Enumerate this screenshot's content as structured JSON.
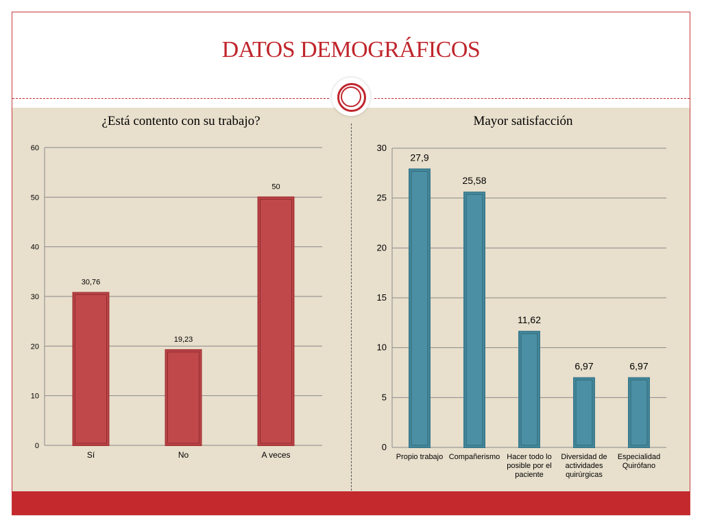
{
  "slide": {
    "title": "DATOS DEMOGRÁFICOS"
  },
  "colors": {
    "accent": "#c0252c",
    "background": "#e8dfcc",
    "footer": "#c3292d"
  },
  "chart_data": [
    {
      "type": "bar",
      "title": "¿Está contento con su trabajo?",
      "categories": [
        "Sí",
        "No",
        "A veces"
      ],
      "values": [
        30.76,
        19.23,
        50
      ],
      "value_labels": [
        "30,76",
        "19,23",
        "50"
      ],
      "ylim": [
        0,
        60
      ],
      "yticks": [
        0,
        10,
        20,
        30,
        40,
        50,
        60
      ],
      "grid": true,
      "color": "#c0484b",
      "xlabel": "",
      "ylabel": ""
    },
    {
      "type": "bar",
      "title": "Mayor satisfacción",
      "categories": [
        [
          "Propio trabajo"
        ],
        [
          "Compañerismo"
        ],
        [
          "Hacer todo lo",
          "posible por el",
          "paciente"
        ],
        [
          "Diversidad de",
          "actividades",
          "quirúrgicas"
        ],
        [
          "Especialidad",
          "Quirófano"
        ]
      ],
      "values": [
        27.9,
        25.58,
        11.62,
        6.97,
        6.97
      ],
      "value_labels": [
        "27,9",
        "25,58",
        "11,62",
        "6,97",
        "6,97"
      ],
      "ylim": [
        0,
        30
      ],
      "yticks": [
        0,
        5,
        10,
        15,
        20,
        25,
        30
      ],
      "grid": true,
      "color": "#4a8fa3",
      "xlabel": "",
      "ylabel": ""
    }
  ]
}
